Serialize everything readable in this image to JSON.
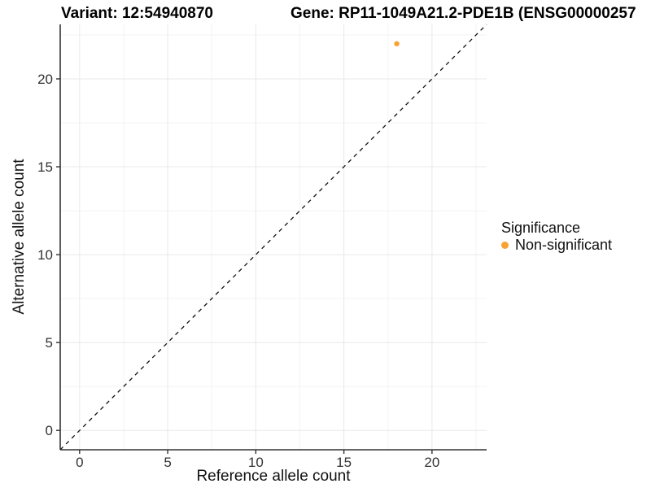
{
  "chart_data": {
    "type": "scatter",
    "title_left": "Variant: 12:54940870",
    "title_right": "Gene: RP11-1049A21.2-PDE1B (ENSG00000257",
    "xlabel": "Reference allele count",
    "ylabel": "Alternative allele count",
    "xlim": [
      -1.1,
      23.1
    ],
    "ylim": [
      -1.1,
      23.1
    ],
    "x_ticks": [
      0,
      5,
      10,
      15,
      20
    ],
    "y_ticks": [
      0,
      5,
      10,
      15,
      20
    ],
    "x_minor_ticks": [
      2.5,
      7.5,
      12.5,
      17.5,
      22.5
    ],
    "y_minor_ticks": [
      2.5,
      7.5,
      12.5,
      17.5,
      22.5
    ],
    "grid": true,
    "identity_line": {
      "slope": 1,
      "intercept": 0,
      "style": "dashed",
      "color": "#111111"
    },
    "series": [
      {
        "name": "Non-significant",
        "color": "#F9A131",
        "points": [
          {
            "x": 18,
            "y": 22
          }
        ]
      }
    ],
    "legend": {
      "title": "Significance",
      "position": "right",
      "items": [
        {
          "label": "Non-significant",
          "color": "#F9A131"
        }
      ]
    },
    "colors": {
      "point": "#F9A131",
      "axis_line": "#333333",
      "tick_label": "#333333",
      "grid_major": "#E8E8E8",
      "grid_minor": "#F3F3F3",
      "background": "#FFFFFF"
    }
  }
}
